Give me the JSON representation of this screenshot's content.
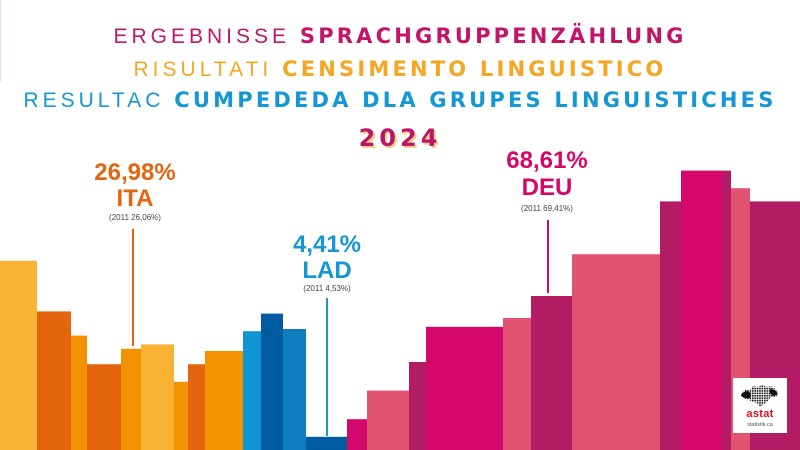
{
  "header": {
    "line1_light": "ERGEBNISSE",
    "line1_bold": "SPRACHGRUPPENZÄHLUNG",
    "line2_light": "RISULTATI",
    "line2_bold": "CENSIMENTO LINGUISTICO",
    "line3_light": "RESULTAC",
    "line3_bold": "CUMPEDEDA DLA GRUPES LINGUISTICHES",
    "year": "2024"
  },
  "colors": {
    "ita": "#e5650f",
    "lad": "#1497d3",
    "deu": "#d4086a",
    "title_de": "#c0156a",
    "title_it": "#f5a623",
    "title_lad": "#1497d3"
  },
  "chart_data": {
    "type": "bar",
    "title": "ERGEBNISSE SPRACHGRUPPENZÄHLUNG 2024",
    "xlabel": "",
    "ylabel": "",
    "categories": [
      "ITA",
      "LAD",
      "DEU"
    ],
    "series": [
      {
        "name": "2024",
        "values": [
          26.98,
          4.41,
          68.61
        ]
      },
      {
        "name": "2011",
        "values": [
          26.06,
          4.53,
          69.41
        ]
      }
    ],
    "ylim": [
      0,
      100
    ],
    "grid": false,
    "legend": "none"
  },
  "annotations": [
    {
      "group": "ITA",
      "pct": "26,98%",
      "label": "ITA",
      "prev": "(2011 26,06%)"
    },
    {
      "group": "LAD",
      "pct": "4,41%",
      "label": "LAD",
      "prev": "(2011 4,53%)"
    },
    {
      "group": "DEU",
      "pct": "68,61%",
      "label": "DEU",
      "prev": "(2011 69,41%)"
    }
  ],
  "decor_bars": [
    {
      "group": "ITA",
      "shade": "#f9b233",
      "level": 0.86
    },
    {
      "group": "ITA",
      "shade": "#e5650f",
      "level": 0.63
    },
    {
      "group": "ITA",
      "shade": "#f39200",
      "level": 0.52
    },
    {
      "group": "ITA",
      "shade": "#e5650f",
      "level": 0.39
    },
    {
      "group": "ITA",
      "shade": "#f39200",
      "level": 0.46
    },
    {
      "group": "ITA",
      "shade": "#f9b233",
      "level": 0.48
    },
    {
      "group": "ITA",
      "shade": "#f39200",
      "level": 0.31
    },
    {
      "group": "ITA",
      "shade": "#e5650f",
      "level": 0.39
    },
    {
      "group": "ITA",
      "shade": "#f39200",
      "level": 0.45
    },
    {
      "group": "LAD",
      "shade": "#0e96d4",
      "level": 0.54
    },
    {
      "group": "LAD",
      "shade": "#005ca1",
      "level": 0.62
    },
    {
      "group": "LAD",
      "shade": "#0e7dc2",
      "level": 0.55
    },
    {
      "group": "LAD",
      "shade": "#005ca1",
      "level": 0.06
    },
    {
      "group": "DEU",
      "shade": "#d4086a",
      "level": 0.14
    },
    {
      "group": "DEU",
      "shade": "#e2536f",
      "level": 0.27
    },
    {
      "group": "DEU",
      "shade": "#b31b65",
      "level": 0.4
    },
    {
      "group": "DEU",
      "shade": "#d4086a",
      "level": 0.56
    },
    {
      "group": "DEU",
      "shade": "#e2536f",
      "level": 0.6
    },
    {
      "group": "DEU",
      "shade": "#b31b65",
      "level": 0.7
    },
    {
      "group": "DEU",
      "shade": "#e2536f",
      "level": 0.89
    },
    {
      "group": "DEU",
      "shade": "#b31b65",
      "level": 1.13
    },
    {
      "group": "DEU",
      "shade": "#d4086a",
      "level": 1.27
    },
    {
      "group": "DEU",
      "shade": "#b31b65",
      "level": 1.27
    },
    {
      "group": "DEU",
      "shade": "#e2536f",
      "level": 1.19
    },
    {
      "group": "DEU",
      "shade": "#b31b65",
      "level": 1.13
    }
  ],
  "logo": {
    "name": "astat",
    "url": "statistik.ca"
  }
}
